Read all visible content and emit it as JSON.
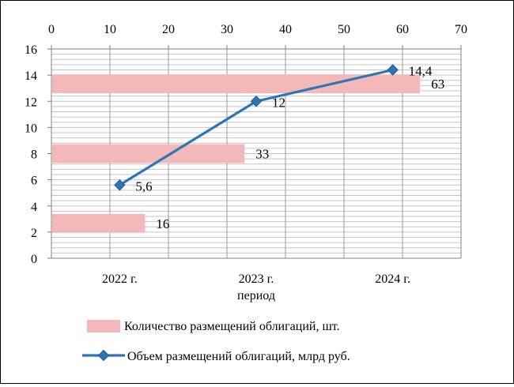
{
  "chart_data": {
    "type": "bar",
    "orientation": "horizontal",
    "categories": [
      "2022 г.",
      "2023 г.",
      "2024 г."
    ],
    "xlabel": "период",
    "title": "",
    "grid": true,
    "legend_position": "bottom",
    "series": [
      {
        "name": "Количество размещений облигаций, шт.",
        "type": "bar",
        "axis": "top",
        "values": [
          16,
          33,
          63
        ],
        "data_labels": [
          "16",
          "33",
          "63"
        ],
        "color": "#f4b8b8"
      },
      {
        "name": "Объем размещений облигаций, млрд  руб.",
        "type": "line",
        "axis": "left",
        "values": [
          5.6,
          12,
          14.4
        ],
        "data_labels": [
          "5,6",
          "12",
          "14,4"
        ],
        "color": "#2e75b6",
        "marker": "diamond"
      }
    ],
    "left_axis": {
      "range": [
        0,
        16
      ],
      "ticks": [
        "0",
        "2",
        "4",
        "6",
        "8",
        "10",
        "12",
        "14",
        "16"
      ]
    },
    "top_axis": {
      "range": [
        0,
        70
      ],
      "ticks": [
        "0",
        "10",
        "20",
        "30",
        "40",
        "50",
        "60",
        "70"
      ]
    }
  }
}
